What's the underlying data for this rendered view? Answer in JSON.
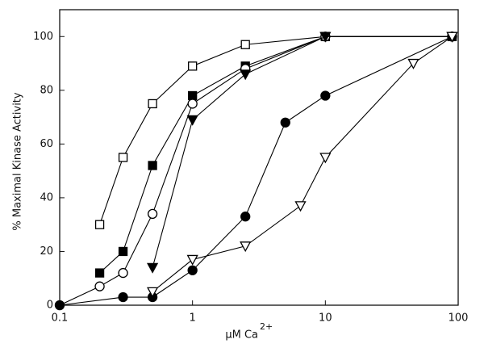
{
  "chart_data": {
    "type": "line",
    "y_label": "% Maximal Kinase Activity",
    "x_label": "μM Ca",
    "x_label_superscript": "2+",
    "xscale": "log",
    "xlim": [
      0.1,
      100
    ],
    "xticks": [
      0.1,
      1,
      10,
      100
    ],
    "ylim": [
      0,
      110
    ],
    "yticks": [
      0,
      20,
      40,
      60,
      80,
      100
    ],
    "series": [
      {
        "marker": "square-open",
        "color": "#000000",
        "x": [
          0.2,
          0.3,
          0.5,
          1,
          2.5,
          10,
          90
        ],
        "values": [
          30,
          55,
          75,
          89,
          97,
          100,
          100
        ]
      },
      {
        "marker": "square-filled",
        "color": "#000000",
        "x": [
          0.2,
          0.3,
          0.5,
          1,
          2.5,
          10,
          90
        ],
        "values": [
          12,
          20,
          52,
          78,
          89,
          100,
          100
        ]
      },
      {
        "marker": "circle-open",
        "color": "#000000",
        "x": [
          0.1,
          0.2,
          0.3,
          0.5,
          1,
          2.5,
          10,
          90
        ],
        "values": [
          0,
          7,
          12,
          34,
          75,
          88,
          100,
          100
        ]
      },
      {
        "marker": "triangle-filled",
        "color": "#000000",
        "x": [
          0.5,
          1,
          2.5,
          10,
          90
        ],
        "values": [
          14,
          69,
          86,
          100,
          100
        ]
      },
      {
        "marker": "circle-filled",
        "color": "#000000",
        "x": [
          0.1,
          0.3,
          0.5,
          1,
          2.5,
          5,
          10,
          90
        ],
        "values": [
          0,
          3,
          3,
          13,
          33,
          68,
          78,
          100
        ]
      },
      {
        "marker": "triangle-open",
        "color": "#000000",
        "x": [
          0.5,
          1,
          2.5,
          6.5,
          10,
          46,
          90
        ],
        "values": [
          5,
          17,
          22,
          37,
          55,
          90,
          100
        ]
      }
    ]
  }
}
